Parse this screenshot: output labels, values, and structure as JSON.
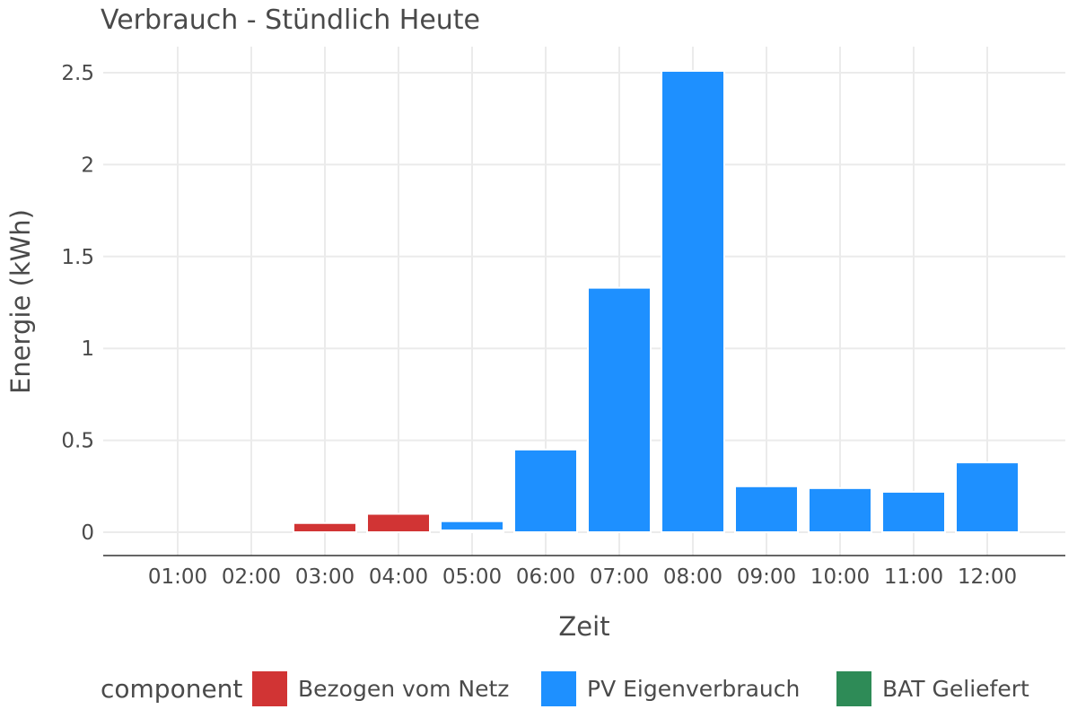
{
  "chart_data": {
    "type": "bar",
    "stacked": true,
    "title": "Verbrauch - Stündlich Heute",
    "xlabel": "Zeit",
    "ylabel": "Energie (kWh)",
    "ylim": [
      0,
      2.6
    ],
    "yticks": [
      0,
      0.5,
      1,
      1.5,
      2,
      2.5
    ],
    "ytick_labels": [
      "0",
      "0.5",
      "1",
      "1.5",
      "2",
      "2.5"
    ],
    "grid": true,
    "legend_position": "bottom",
    "legend_title": "component",
    "categories": [
      "01:00",
      "02:00",
      "03:00",
      "04:00",
      "05:00",
      "06:00",
      "07:00",
      "08:00",
      "09:00",
      "10:00",
      "11:00",
      "12:00"
    ],
    "series": [
      {
        "name": "Bezogen vom Netz",
        "color": "#d13434",
        "values": [
          0,
          0,
          0.05,
          0.1,
          0.01,
          0,
          0,
          0,
          0,
          0,
          0,
          0
        ]
      },
      {
        "name": "PV Eigenverbrauch",
        "color": "#1e90ff",
        "values": [
          0,
          0,
          0,
          0,
          0.05,
          0.45,
          1.33,
          2.51,
          0.25,
          0.24,
          0.22,
          0.38
        ]
      },
      {
        "name": "BAT Geliefert",
        "color": "#2e8b57",
        "values": [
          0,
          0,
          0,
          0,
          0,
          0,
          0,
          0,
          0,
          0,
          0,
          0
        ]
      }
    ]
  }
}
